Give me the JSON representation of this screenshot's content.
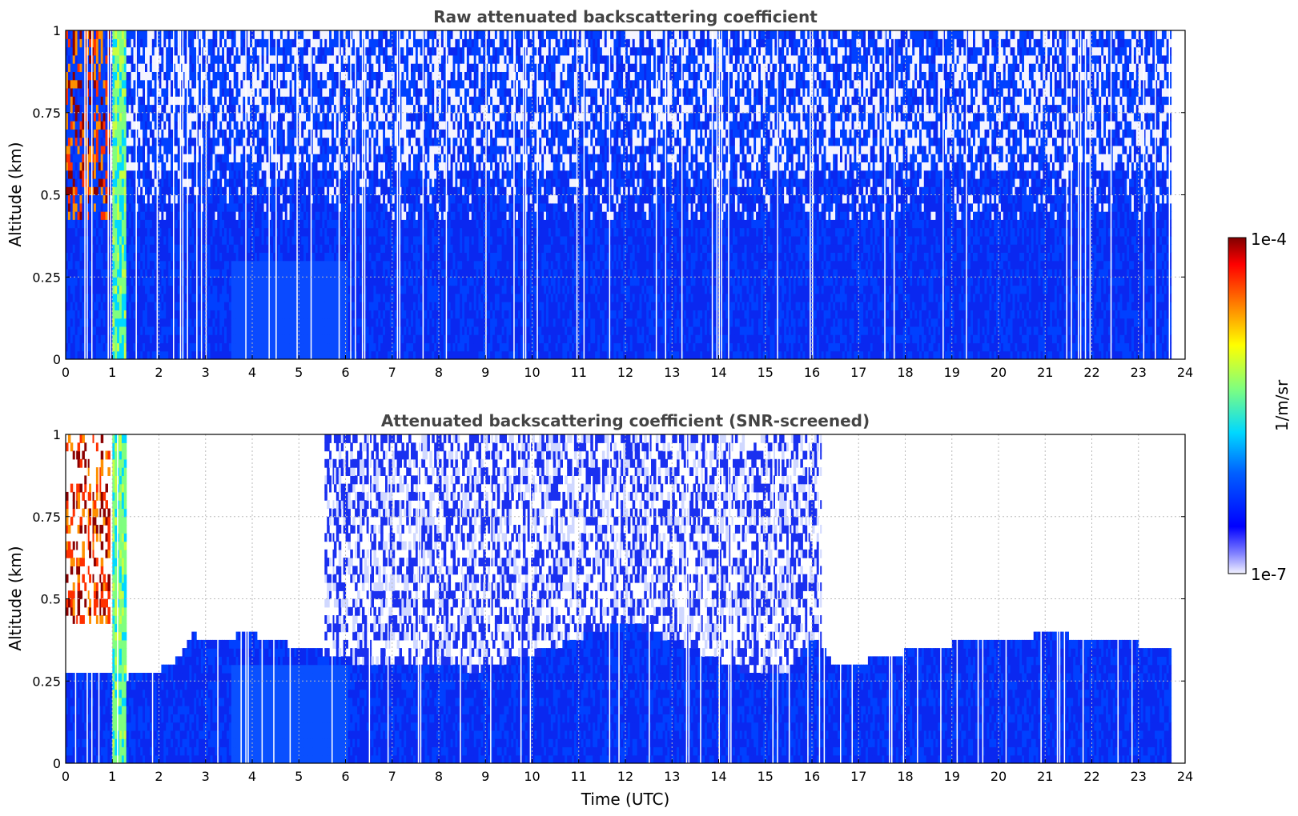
{
  "chart_data": {
    "type": "heatmap",
    "colormap": "jet",
    "panels": [
      {
        "id": "raw",
        "title": "Raw attenuated backscattering coefficient",
        "ylabel": "Altitude (km)",
        "xlabel": "",
        "xlim": [
          0,
          24
        ],
        "ylim": [
          0,
          1
        ],
        "xticks": [
          "0",
          "1",
          "2",
          "3",
          "4",
          "5",
          "6",
          "7",
          "8",
          "9",
          "10",
          "11",
          "12",
          "13",
          "14",
          "15",
          "16",
          "17",
          "18",
          "19",
          "20",
          "21",
          "22",
          "23",
          "24"
        ],
        "yticks": [
          "0",
          "0.25",
          "0.5",
          "0.75",
          "1"
        ],
        "data_end_time": 23.7,
        "grid": true
      },
      {
        "id": "screened",
        "title": "Attenuated backscattering coefficient (SNR-screened)",
        "ylabel": "Altitude (km)",
        "xlabel": "Time (UTC)",
        "xlim": [
          0,
          24
        ],
        "ylim": [
          0,
          1
        ],
        "xticks": [
          "0",
          "1",
          "2",
          "3",
          "4",
          "5",
          "6",
          "7",
          "8",
          "9",
          "10",
          "11",
          "12",
          "13",
          "14",
          "15",
          "16",
          "17",
          "18",
          "19",
          "20",
          "21",
          "22",
          "23",
          "24"
        ],
        "yticks": [
          "0",
          "0.25",
          "0.5",
          "0.75",
          "1"
        ],
        "data_end_time": 23.7,
        "grid": true,
        "snr_boundary_km": [
          [
            0,
            0.27
          ],
          [
            0.35,
            0.27
          ],
          [
            1.3,
            0.25
          ],
          [
            2.0,
            0.27
          ],
          [
            2.4,
            0.31
          ],
          [
            2.7,
            0.38
          ],
          [
            3.1,
            0.35
          ],
          [
            3.5,
            0.37
          ],
          [
            3.9,
            0.39
          ],
          [
            4.2,
            0.36
          ],
          [
            5.2,
            0.34
          ],
          [
            5.7,
            0.31
          ],
          [
            6.5,
            0.29
          ],
          [
            7.5,
            0.29
          ],
          [
            8.2,
            0.28
          ],
          [
            8.8,
            0.27
          ],
          [
            9.5,
            0.3
          ],
          [
            10.3,
            0.33
          ],
          [
            11.0,
            0.37
          ],
          [
            12.0,
            0.42
          ],
          [
            13.0,
            0.36
          ],
          [
            14.0,
            0.3
          ],
          [
            14.7,
            0.26
          ],
          [
            15.4,
            0.26
          ],
          [
            16.0,
            0.37
          ],
          [
            16.4,
            0.3
          ],
          [
            17.2,
            0.3
          ],
          [
            17.6,
            0.32
          ],
          [
            18.3,
            0.33
          ],
          [
            19.0,
            0.35
          ],
          [
            20.0,
            0.36
          ],
          [
            21.0,
            0.38
          ],
          [
            22.0,
            0.37
          ],
          [
            23.0,
            0.35
          ],
          [
            23.7,
            0.35
          ]
        ]
      }
    ],
    "colorbar": {
      "label": "1/m/sr",
      "min_label": "1e-7",
      "max_label": "1e-4",
      "scale": "log"
    }
  }
}
